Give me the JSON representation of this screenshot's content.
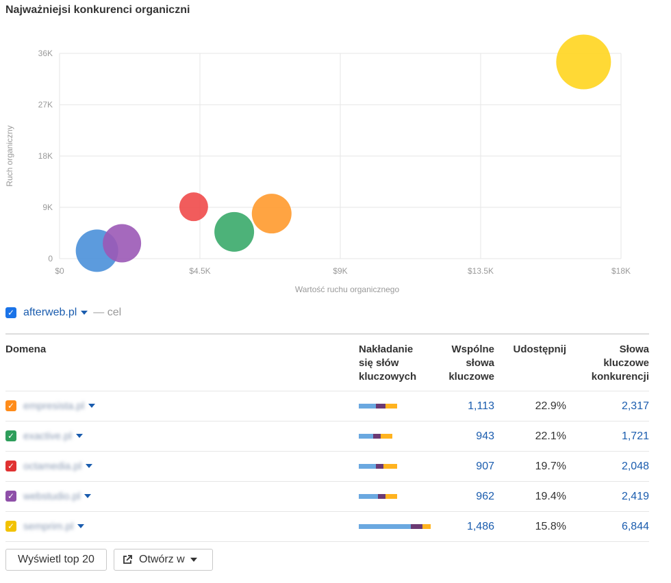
{
  "title": "Najważniejsi konkurenci organiczni",
  "chart_data": {
    "type": "scatter",
    "xlabel": "Wartość ruchu organicznego",
    "ylabel": "Ruch organiczny",
    "xlim": [
      0,
      18000
    ],
    "ylim": [
      0,
      36000
    ],
    "x_ticks": [
      "$0",
      "$4.5K",
      "$9K",
      "$13.5K",
      "$18K"
    ],
    "y_ticks": [
      "0",
      "9K",
      "18K",
      "27K",
      "36K"
    ],
    "grid": true,
    "points": [
      {
        "x": 1200,
        "y": 1400,
        "color": "#4a90d9"
      },
      {
        "x": 2000,
        "y": 2700,
        "color": "#9b59b6"
      },
      {
        "x": 4300,
        "y": 9100,
        "color": "#f04a4a"
      },
      {
        "x": 5600,
        "y": 4700,
        "color": "#3aaa6a"
      },
      {
        "x": 6800,
        "y": 7900,
        "color": "#ff9a2e"
      },
      {
        "x": 16800,
        "y": 34500,
        "color": "#ffd51f"
      }
    ]
  },
  "target": {
    "domain": "afterweb.pl",
    "label": "— cel"
  },
  "table": {
    "headers": {
      "domain": "Domena",
      "overlap": [
        "Nakładanie",
        "się słów",
        "kluczowych"
      ],
      "common": [
        "Wspólne",
        "słowa",
        "kluczowe"
      ],
      "share": [
        "Udostępnij"
      ],
      "competitor": [
        "Słowa",
        "kluczowe",
        "konkurencji"
      ]
    },
    "rows": [
      {
        "color": "#ff8c1a",
        "domain": "empresista.pl",
        "common": "1,113",
        "share": "22.9%",
        "competitor": "2,317",
        "bars": [
          0.45,
          0.25,
          0.3
        ]
      },
      {
        "color": "#2e9e5b",
        "domain": "exactive.pl",
        "common": "943",
        "share": "22.1%",
        "competitor": "1,721",
        "bars": [
          0.42,
          0.22,
          0.36
        ]
      },
      {
        "color": "#e03131",
        "domain": "octamedia.pl",
        "common": "907",
        "share": "19.7%",
        "competitor": "2,048",
        "bars": [
          0.45,
          0.2,
          0.35
        ]
      },
      {
        "color": "#8e4fa8",
        "domain": "webstudio.pl",
        "common": "962",
        "share": "19.4%",
        "competitor": "2,419",
        "bars": [
          0.5,
          0.2,
          0.3
        ]
      },
      {
        "color": "#f2c200",
        "domain": "semprim.pl",
        "common": "1,486",
        "share": "15.8%",
        "competitor": "6,844",
        "bars": [
          0.72,
          0.17,
          0.11
        ]
      }
    ],
    "bar_colors": [
      "#6aa8e0",
      "#6b3a73",
      "#ffb31f"
    ]
  },
  "buttons": {
    "top": "Wyświetl top 20",
    "open": "Otwórz w"
  }
}
